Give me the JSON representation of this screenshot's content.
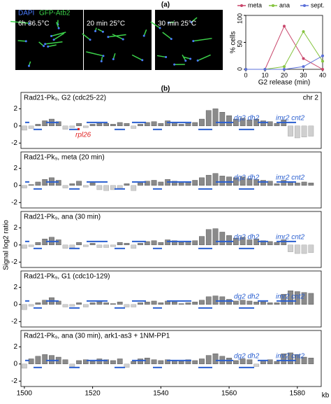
{
  "panel_labels": {
    "a": "(a)",
    "b": "(b)"
  },
  "images": [
    {
      "label": "6h 36.5°C",
      "channels": [
        "DAPI",
        "GFP-Atb2"
      ]
    },
    {
      "label": "20 min 25°C"
    },
    {
      "label": "30 min 25°C"
    }
  ],
  "ylabel": "Signal log2 ratio",
  "xlabel": "kb",
  "chart_data": [
    {
      "type": "line",
      "xlabel": "G2 release (min)",
      "ylabel": "% cells",
      "x": [
        0,
        10,
        20,
        30,
        40
      ],
      "xlim": [
        0,
        40
      ],
      "xticks": [
        0,
        10,
        20,
        30,
        40
      ],
      "ylim": [
        0,
        100
      ],
      "yticks": [
        0,
        50,
        100
      ],
      "series": [
        {
          "name": "meta",
          "color": "#c8456a",
          "values": [
            0,
            0,
            80,
            20,
            0
          ]
        },
        {
          "name": "ana",
          "color": "#86c440",
          "values": [
            0,
            0,
            5,
            70,
            15
          ]
        },
        {
          "name": "sept.",
          "color": "#5a6fd8",
          "values": [
            0,
            0,
            0,
            5,
            25
          ]
        }
      ]
    },
    {
      "type": "bar",
      "title": "Rad21-Pk₉, G2 (cdc25-22)",
      "corner_label": "chr 2",
      "note": "rpl26",
      "annotations": [
        "dg2 dh2",
        "imr2 cnt2"
      ],
      "x": [
        1500,
        1502,
        1504,
        1506,
        1508,
        1510,
        1512,
        1514,
        1516,
        1518,
        1520,
        1522,
        1524,
        1526,
        1528,
        1530,
        1532,
        1534,
        1536,
        1538,
        1540,
        1542,
        1544,
        1546,
        1548,
        1550,
        1552,
        1554,
        1556,
        1558,
        1560,
        1562,
        1564,
        1566,
        1568,
        1570,
        1572,
        1574,
        1576,
        1578,
        1580,
        1582,
        1584
      ],
      "values": [
        -0.5,
        -0.3,
        0.2,
        0.6,
        0.8,
        0.5,
        -0.4,
        -0.2,
        0.3,
        -0.2,
        0.2,
        0.3,
        0.3,
        0.2,
        0.4,
        0.3,
        -0.3,
        0.2,
        0.4,
        0.5,
        0.3,
        0.6,
        0.4,
        0.2,
        0.3,
        0.4,
        0.8,
        1.8,
        2.0,
        1.6,
        1.2,
        0.8,
        0.9,
        0.7,
        0.8,
        0.6,
        0.5,
        0.3,
        0.7,
        -1.2,
        -1.4,
        -1.3,
        -1.2
      ],
      "xlim": [
        1499,
        1587
      ],
      "ylim": [
        -2.3,
        2.6
      ],
      "yticks": [
        -2,
        0,
        2
      ]
    },
    {
      "type": "bar",
      "title": "Rad21-Pk₉, meta (20 min)",
      "annotations": [
        "dg2 dh2",
        "imr2 cnt2"
      ],
      "x": [
        1500,
        1502,
        1504,
        1506,
        1508,
        1510,
        1512,
        1514,
        1516,
        1518,
        1520,
        1522,
        1524,
        1526,
        1528,
        1530,
        1532,
        1534,
        1536,
        1538,
        1540,
        1542,
        1544,
        1546,
        1548,
        1550,
        1552,
        1554,
        1556,
        1558,
        1560,
        1562,
        1564,
        1566,
        1568,
        1570,
        1572,
        1574,
        1576,
        1578,
        1580,
        1582,
        1584
      ],
      "values": [
        -0.3,
        0.1,
        0.4,
        0.7,
        0.9,
        0.6,
        -0.3,
        0.2,
        0.5,
        -0.2,
        0.3,
        -0.5,
        -0.6,
        -0.5,
        -0.4,
        0.2,
        -0.6,
        0.3,
        0.5,
        0.6,
        0.4,
        0.7,
        0.5,
        0.3,
        0.4,
        0.6,
        0.9,
        1.2,
        1.4,
        1.1,
        1.0,
        0.9,
        1.0,
        0.8,
        0.7,
        0.6,
        0.5,
        0.2,
        0.6,
        0.4,
        0.3,
        0.4,
        0.3
      ],
      "xlim": [
        1499,
        1587
      ],
      "ylim": [
        -2.3,
        2.6
      ],
      "yticks": [
        -2,
        0,
        2
      ]
    },
    {
      "type": "bar",
      "title": "Rad21-Pk₉, ana (30 min)",
      "annotations": [
        "dg2 dh2",
        "imr2 cnt2"
      ],
      "x": [
        1500,
        1502,
        1504,
        1506,
        1508,
        1510,
        1512,
        1514,
        1516,
        1518,
        1520,
        1522,
        1524,
        1526,
        1528,
        1530,
        1532,
        1534,
        1536,
        1538,
        1540,
        1542,
        1544,
        1546,
        1548,
        1550,
        1552,
        1554,
        1556,
        1558,
        1560,
        1562,
        1564,
        1566,
        1568,
        1570,
        1572,
        1574,
        1576,
        1578,
        1580,
        1582,
        1584
      ],
      "values": [
        -0.4,
        -0.2,
        0.3,
        0.7,
        0.9,
        0.6,
        -0.4,
        -0.3,
        0.3,
        -0.2,
        0.2,
        -0.3,
        -0.3,
        -0.2,
        0.3,
        0.2,
        -0.4,
        0.2,
        0.4,
        0.5,
        0.3,
        0.6,
        0.5,
        0.3,
        0.4,
        0.5,
        1.0,
        1.8,
        1.9,
        1.5,
        1.1,
        0.8,
        0.9,
        0.6,
        0.7,
        0.5,
        0.4,
        0.3,
        0.6,
        -0.8,
        -1.0,
        -1.0,
        -0.9
      ],
      "xlim": [
        1499,
        1587
      ],
      "ylim": [
        -2.3,
        2.6
      ],
      "yticks": [
        -2,
        0,
        2
      ]
    },
    {
      "type": "bar",
      "title": "Rad21-Pk₉, G1 (cdc10-129)",
      "annotations": [
        "dg2 dh2",
        "imr2 cnt2"
      ],
      "x": [
        1500,
        1502,
        1504,
        1506,
        1508,
        1510,
        1512,
        1514,
        1516,
        1518,
        1520,
        1522,
        1524,
        1526,
        1528,
        1530,
        1532,
        1534,
        1536,
        1538,
        1540,
        1542,
        1544,
        1546,
        1548,
        1550,
        1552,
        1554,
        1556,
        1558,
        1560,
        1562,
        1564,
        1566,
        1568,
        1570,
        1572,
        1574,
        1576,
        1578,
        1580,
        1582,
        1584
      ],
      "values": [
        -0.6,
        -0.2,
        0.2,
        0.5,
        0.8,
        0.4,
        -0.3,
        -0.2,
        0.2,
        -0.3,
        0.2,
        0.3,
        0.2,
        0.1,
        0.3,
        -0.3,
        -0.3,
        0.2,
        0.3,
        0.4,
        0.2,
        0.4,
        0.3,
        0.1,
        0.2,
        0.3,
        0.5,
        0.9,
        1.0,
        0.9,
        0.6,
        0.4,
        0.5,
        0.4,
        0.3,
        0.3,
        0.2,
        0.2,
        1.2,
        1.6,
        1.5,
        1.4,
        1.3
      ],
      "xlim": [
        1499,
        1587
      ],
      "ylim": [
        -2.3,
        2.6
      ],
      "yticks": [
        -2,
        0,
        2
      ]
    },
    {
      "type": "bar",
      "title": "Rad21-Pk₉, ana (30 min), ark1-as3 + 1NM-PP1",
      "annotations": [
        "dg2 dh2",
        "imr2 cnt2"
      ],
      "x": [
        1500,
        1502,
        1504,
        1506,
        1508,
        1510,
        1512,
        1514,
        1516,
        1518,
        1520,
        1522,
        1524,
        1526,
        1528,
        1530,
        1532,
        1534,
        1536,
        1538,
        1540,
        1542,
        1544,
        1546,
        1548,
        1550,
        1552,
        1554,
        1556,
        1558,
        1560,
        1562,
        1564,
        1566,
        1568,
        1570,
        1572,
        1574,
        1576,
        1578,
        1580,
        1582,
        1584
      ],
      "values": [
        -0.5,
        0.6,
        0.9,
        1.1,
        1.0,
        0.8,
        0.5,
        -0.3,
        0.4,
        0.5,
        0.3,
        0.6,
        0.5,
        0.4,
        0.6,
        -0.4,
        0.3,
        0.6,
        0.7,
        0.5,
        0.4,
        0.5,
        0.4,
        0.3,
        0.5,
        0.4,
        0.6,
        1.0,
        1.2,
        0.9,
        0.7,
        0.4,
        0.6,
        0.5,
        -0.3,
        0.4,
        0.5,
        0.3,
        1.2,
        1.3,
        1.1,
        0.8,
        0.7
      ],
      "xlim": [
        1499,
        1587
      ],
      "ylim": [
        -2.3,
        2.6
      ],
      "yticks": [
        -2,
        0,
        2
      ],
      "xticks": [
        1500,
        1520,
        1540,
        1560,
        1580
      ]
    }
  ]
}
